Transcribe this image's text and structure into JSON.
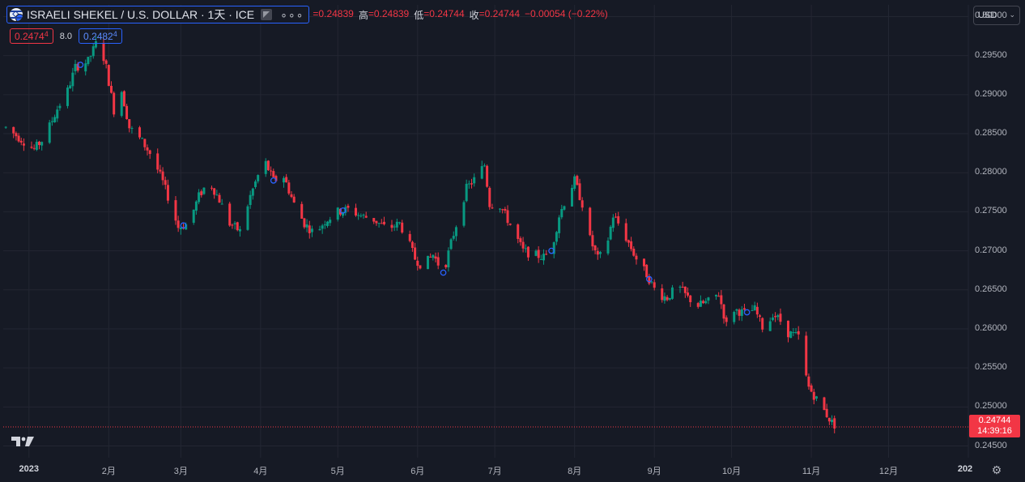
{
  "header": {
    "symbol_title": "ISRAELI SHEKEL / U.S. DOLLAR · 1天 · ICE",
    "more_glyph": "∘∘∘",
    "ohlc": [
      {
        "k": "",
        "v": "=0.24839"
      },
      {
        "k": "高",
        "v": "=0.24839"
      },
      {
        "k": "低",
        "v": "=0.24744"
      },
      {
        "k": "收",
        "v": "=0.24744"
      },
      {
        "k": "",
        "v": "−0.00054 (−0.22%)"
      }
    ]
  },
  "trade": {
    "sell_price": "0.2474",
    "sell_sup": "4",
    "spread": "8.0",
    "buy_price": "0.2482",
    "buy_sup": "4"
  },
  "currency": {
    "label": "USD",
    "chevron": "⌄"
  },
  "price_axis": {
    "ticks": [
      "0.30000",
      "0.29500",
      "0.29000",
      "0.28500",
      "0.28000",
      "0.27500",
      "0.27000",
      "0.26500",
      "0.26000",
      "0.25500",
      "0.25000",
      "0.24500"
    ]
  },
  "last_price": {
    "value": "0.24744",
    "countdown": "14:39:16"
  },
  "time_axis": {
    "ticks": [
      {
        "label": "2023",
        "year": true
      },
      {
        "label": "2月",
        "year": false
      },
      {
        "label": "3月",
        "year": false
      },
      {
        "label": "4月",
        "year": false
      },
      {
        "label": "5月",
        "year": false
      },
      {
        "label": "6月",
        "year": false
      },
      {
        "label": "7月",
        "year": false
      },
      {
        "label": "8月",
        "year": false
      },
      {
        "label": "9月",
        "year": false
      },
      {
        "label": "10月",
        "year": false
      },
      {
        "label": "11月",
        "year": false
      },
      {
        "label": "12月",
        "year": false
      },
      {
        "label": "202",
        "year": true
      }
    ]
  },
  "chart_data": {
    "type": "candlestick",
    "title": "ISRAELI SHEKEL / U.S. DOLLAR · 1天 · ICE",
    "ylim": [
      0.2435,
      0.3015
    ],
    "x_range": [
      "2022-12-22",
      "2024-01-01"
    ],
    "up_color": "#089981",
    "down_color": "#f23645",
    "event_marker_color": "#2962ff",
    "last_price_line": 0.24744,
    "path": [
      [
        "2022-12-23",
        0.2858
      ],
      [
        "2023-01-03",
        0.283
      ],
      [
        "2023-01-07",
        0.2845
      ],
      [
        "2023-01-12",
        0.2882
      ],
      [
        "2023-01-16",
        0.2905
      ],
      [
        "2023-01-19",
        0.2935
      ],
      [
        "2023-01-24",
        0.2943
      ],
      [
        "2023-01-28",
        0.2972
      ],
      [
        "2023-01-31",
        0.2935
      ],
      [
        "2023-02-03",
        0.288
      ],
      [
        "2023-02-06",
        0.2905
      ],
      [
        "2023-02-09",
        0.2858
      ],
      [
        "2023-02-14",
        0.284
      ],
      [
        "2023-02-18",
        0.282
      ],
      [
        "2023-02-22",
        0.2788
      ],
      [
        "2023-02-25",
        0.276
      ],
      [
        "2023-02-28",
        0.273
      ],
      [
        "2023-03-04",
        0.2735
      ],
      [
        "2023-03-08",
        0.277
      ],
      [
        "2023-03-12",
        0.279
      ],
      [
        "2023-03-16",
        0.2765
      ],
      [
        "2023-03-20",
        0.2735
      ],
      [
        "2023-03-24",
        0.2725
      ],
      [
        "2023-03-28",
        0.277
      ],
      [
        "2023-04-01",
        0.2805
      ],
      [
        "2023-04-03",
        0.2812
      ],
      [
        "2023-04-06",
        0.279
      ],
      [
        "2023-04-10",
        0.2795
      ],
      [
        "2023-04-14",
        0.276
      ],
      [
        "2023-04-18",
        0.2735
      ],
      [
        "2023-04-22",
        0.2722
      ],
      [
        "2023-04-26",
        0.2738
      ],
      [
        "2023-05-01",
        0.275
      ],
      [
        "2023-05-05",
        0.2753
      ],
      [
        "2023-05-10",
        0.2745
      ],
      [
        "2023-05-15",
        0.274
      ],
      [
        "2023-05-20",
        0.2728
      ],
      [
        "2023-05-25",
        0.2735
      ],
      [
        "2023-05-28",
        0.2715
      ],
      [
        "2023-05-31",
        0.269
      ],
      [
        "2023-06-03",
        0.268
      ],
      [
        "2023-06-07",
        0.2695
      ],
      [
        "2023-06-11",
        0.2672
      ],
      [
        "2023-06-14",
        0.271
      ],
      [
        "2023-06-17",
        0.2745
      ],
      [
        "2023-06-20",
        0.278
      ],
      [
        "2023-06-24",
        0.2795
      ],
      [
        "2023-06-27",
        0.281
      ],
      [
        "2023-06-29",
        0.276
      ],
      [
        "2023-07-03",
        0.2758
      ],
      [
        "2023-07-06",
        0.274
      ],
      [
        "2023-07-09",
        0.272
      ],
      [
        "2023-07-12",
        0.27
      ],
      [
        "2023-07-16",
        0.2695
      ],
      [
        "2023-07-20",
        0.2692
      ],
      [
        "2023-07-23",
        0.27
      ],
      [
        "2023-07-26",
        0.2745
      ],
      [
        "2023-07-29",
        0.277
      ],
      [
        "2023-08-01",
        0.279
      ],
      [
        "2023-08-04",
        0.276
      ],
      [
        "2023-08-07",
        0.2715
      ],
      [
        "2023-08-10",
        0.269
      ],
      [
        "2023-08-13",
        0.27
      ],
      [
        "2023-08-16",
        0.2745
      ],
      [
        "2023-08-19",
        0.273
      ],
      [
        "2023-08-22",
        0.271
      ],
      [
        "2023-08-25",
        0.269
      ],
      [
        "2023-08-29",
        0.267
      ],
      [
        "2023-09-02",
        0.2645
      ],
      [
        "2023-09-06",
        0.264
      ],
      [
        "2023-09-10",
        0.2655
      ],
      [
        "2023-09-14",
        0.264
      ],
      [
        "2023-09-18",
        0.263
      ],
      [
        "2023-09-22",
        0.2635
      ],
      [
        "2023-09-26",
        0.2645
      ],
      [
        "2023-09-29",
        0.2605
      ],
      [
        "2023-10-02",
        0.2625
      ],
      [
        "2023-10-06",
        0.262
      ],
      [
        "2023-10-10",
        0.2625
      ],
      [
        "2023-10-14",
        0.2595
      ],
      [
        "2023-10-17",
        0.262
      ],
      [
        "2023-10-20",
        0.261
      ],
      [
        "2023-10-23",
        0.2595
      ],
      [
        "2023-10-27",
        0.259
      ],
      [
        "2023-10-29",
        0.255
      ],
      [
        "2023-10-31",
        0.2525
      ],
      [
        "2023-11-03",
        0.251
      ],
      [
        "2023-11-06",
        0.2495
      ],
      [
        "2023-11-09",
        0.248
      ],
      [
        "2023-11-11",
        0.24744
      ]
    ],
    "event_markers": [
      "2023-01-21",
      "2023-03-02",
      "2023-04-06",
      "2023-05-03",
      "2023-06-11",
      "2023-07-23",
      "2023-08-30",
      "2023-10-07"
    ]
  }
}
